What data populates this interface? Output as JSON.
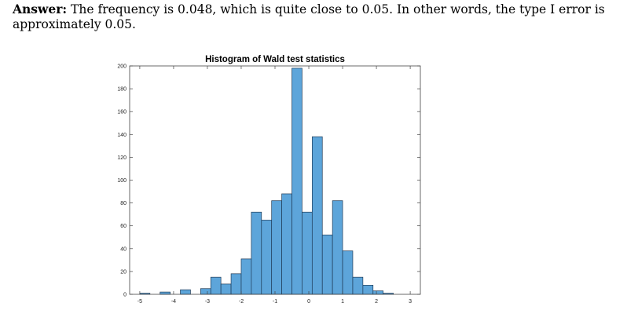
{
  "answer": {
    "label": "Answer:",
    "text": " The frequency is 0.048, which is quite close to 0.05. In other words, the type I error is approximately 0.05."
  },
  "chart_data": {
    "type": "bar",
    "title": "Histogram of Wald test statistics",
    "xlabel": "",
    "ylabel": "",
    "xlim": [
      -5.3,
      3.3
    ],
    "ylim": [
      0,
      200
    ],
    "xticks": [
      -5,
      -4,
      -3,
      -2,
      -1,
      0,
      1,
      2,
      3
    ],
    "yticks": [
      0,
      20,
      40,
      60,
      80,
      100,
      120,
      140,
      160,
      180,
      200
    ],
    "bin_width": 0.3,
    "bin_start": -5.3,
    "values": [
      0,
      1,
      0,
      2,
      0,
      4,
      0,
      5,
      15,
      9,
      18,
      31,
      72,
      65,
      82,
      88,
      198,
      72,
      138,
      52,
      82,
      38,
      15,
      8,
      3,
      1,
      0,
      0,
      0
    ],
    "bar_color": "#5DA5DA",
    "grid": false,
    "legend": "none"
  }
}
